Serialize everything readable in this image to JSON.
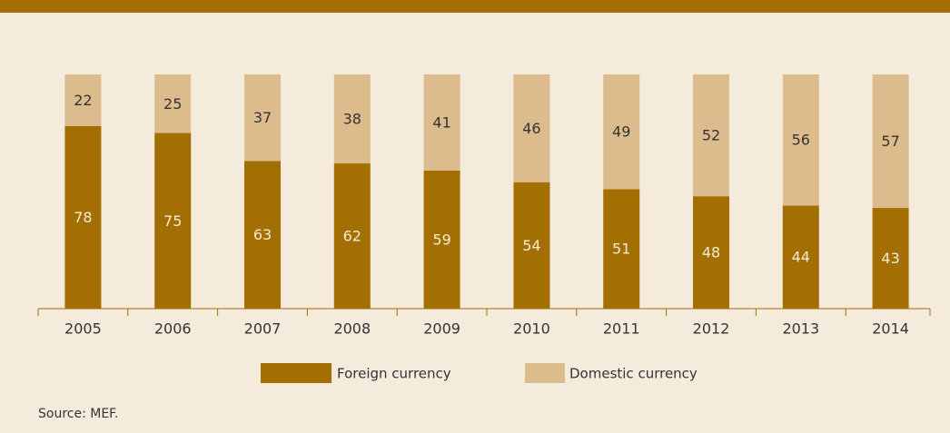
{
  "chart_data": {
    "type": "stacked_bar",
    "categories": [
      "2005",
      "2006",
      "2007",
      "2008",
      "2009",
      "2010",
      "2011",
      "2012",
      "2013",
      "2014"
    ],
    "series": [
      {
        "name": "Foreign currency",
        "color": "#a46f02",
        "values": [
          78,
          75,
          63,
          62,
          59,
          54,
          51,
          48,
          44,
          43
        ]
      },
      {
        "name": "Domestic currency",
        "color": "#dcbc8c",
        "values": [
          22,
          25,
          37,
          38,
          41,
          46,
          49,
          52,
          56,
          57
        ]
      }
    ],
    "ylim": [
      0,
      100
    ],
    "source": "Source: MEF."
  }
}
